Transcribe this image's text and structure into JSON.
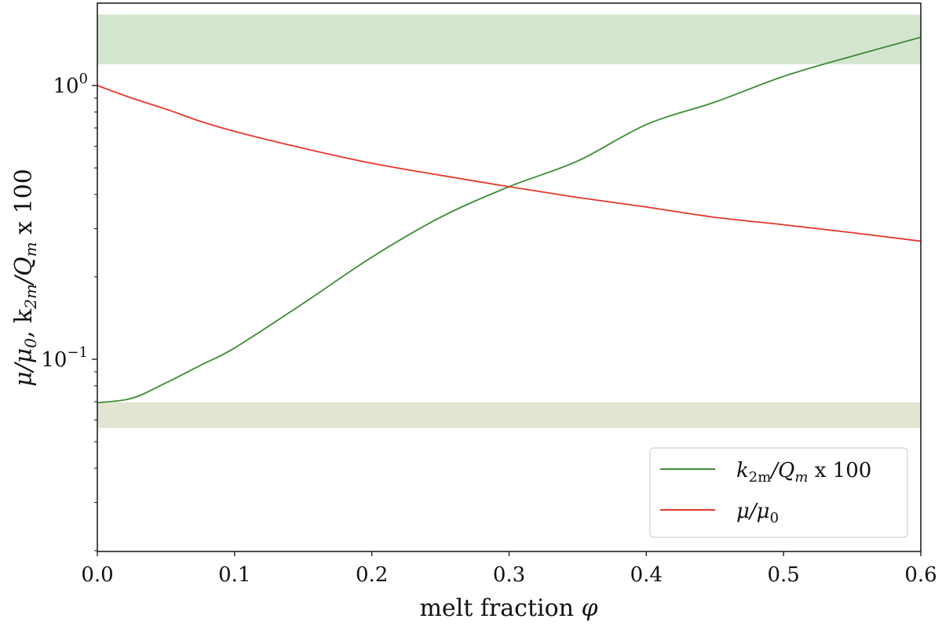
{
  "chart_data": {
    "type": "line",
    "title": "",
    "xlabel": "melt fraction φ",
    "ylabel": "μ/μ₀, k₂ₘ/Qₘ x 100",
    "xscale": "linear",
    "yscale": "log",
    "xlim": [
      0.0,
      0.6
    ],
    "ylim": [
      0.02,
      2.0
    ],
    "grid": false,
    "legend_position": "lower right",
    "x_ticks": [
      "0.0",
      "0.1",
      "0.2",
      "0.3",
      "0.4",
      "0.5",
      "0.6"
    ],
    "y_ticks": [
      {
        "value": 1.0,
        "label": "10",
        "exp": "0"
      },
      {
        "value": 0.1,
        "label": "10",
        "exp": "−1"
      }
    ],
    "x": [
      0.0,
      0.025,
      0.05,
      0.075,
      0.1,
      0.15,
      0.2,
      0.25,
      0.3,
      0.35,
      0.4,
      0.45,
      0.5,
      0.55,
      0.6
    ],
    "series": [
      {
        "name": "k₂ₘ/Qₘ x 100",
        "legend_main": "k",
        "legend_sub1": "2m",
        "legend_mid": "/Q",
        "legend_sub2": "m",
        "legend_tail": " x 100",
        "color": "#3d8b35",
        "values": [
          0.0694,
          0.072,
          0.082,
          0.095,
          0.11,
          0.16,
          0.236,
          0.33,
          0.427,
          0.53,
          0.72,
          0.87,
          1.08,
          1.28,
          1.5
        ]
      },
      {
        "name": "μ/μ₀",
        "legend_main": "μ/μ",
        "legend_sub1": "0",
        "color": "#e8372c",
        "values": [
          1.0,
          0.9,
          0.82,
          0.74,
          0.68,
          0.59,
          0.52,
          0.47,
          0.427,
          0.39,
          0.36,
          0.33,
          0.31,
          0.29,
          0.27
        ]
      }
    ],
    "bands": [
      {
        "name": "upper-band",
        "y_low": 1.2,
        "y_high": 1.81,
        "color": "#d5e6d0"
      },
      {
        "name": "lower-band",
        "y_low": 0.0563,
        "y_high": 0.0694,
        "color": "#e3e5d3"
      }
    ]
  },
  "labels": {
    "xlabel_text": "melt fraction ",
    "xlabel_symbol": "φ",
    "ylabel_part1": "μ/μ",
    "ylabel_sub1": "0",
    "ylabel_part2": ", k",
    "ylabel_sub2": "2m",
    "ylabel_part3": "/Q",
    "ylabel_sub3": "m",
    "ylabel_part4": " x 100"
  }
}
